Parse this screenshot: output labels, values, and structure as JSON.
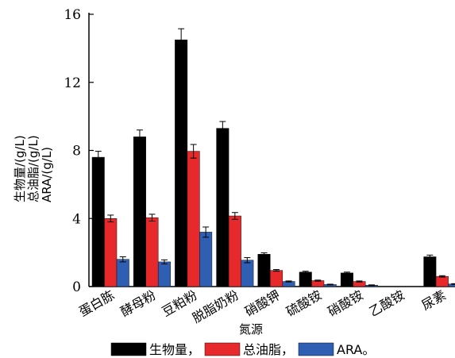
{
  "chart_data": {
    "type": "bar",
    "categories": [
      "蛋白胨",
      "酵母粉",
      "豆粕粉",
      "脱脂奶粉",
      "硝酸钾",
      "硫酸铵",
      "硝酸铵",
      "乙酸铵",
      "尿素"
    ],
    "series": [
      {
        "name": "生物量，",
        "color": "#000000",
        "values": [
          7.6,
          8.8,
          14.5,
          9.3,
          1.9,
          0.85,
          0.8,
          0.0,
          1.75
        ],
        "errors": [
          0.35,
          0.4,
          0.65,
          0.4,
          0.08,
          0.05,
          0.05,
          0.0,
          0.1
        ]
      },
      {
        "name": "总油脂，",
        "color": "#e8292b",
        "values": [
          4.0,
          4.05,
          7.95,
          4.15,
          0.95,
          0.35,
          0.3,
          0.0,
          0.6
        ],
        "errors": [
          0.2,
          0.2,
          0.4,
          0.2,
          0.05,
          0.03,
          0.03,
          0.0,
          0.04
        ]
      },
      {
        "name": "ARA。",
        "color": "#2e5fb3",
        "values": [
          1.6,
          1.45,
          3.2,
          1.55,
          0.3,
          0.12,
          0.08,
          0.0,
          0.15
        ],
        "errors": [
          0.15,
          0.12,
          0.3,
          0.15,
          0.03,
          0.02,
          0.02,
          0.0,
          0.02
        ]
      }
    ],
    "xlabel": "氮源",
    "ylabel_lines": [
      "生物量/(g/L)",
      "总油脂/(g/L)",
      "ARA/(g/L)"
    ],
    "ylim": [
      0,
      16
    ],
    "yticks": [
      "0",
      "4",
      "8",
      "12",
      "16"
    ],
    "legend_position": "bottom",
    "grid": false
  }
}
